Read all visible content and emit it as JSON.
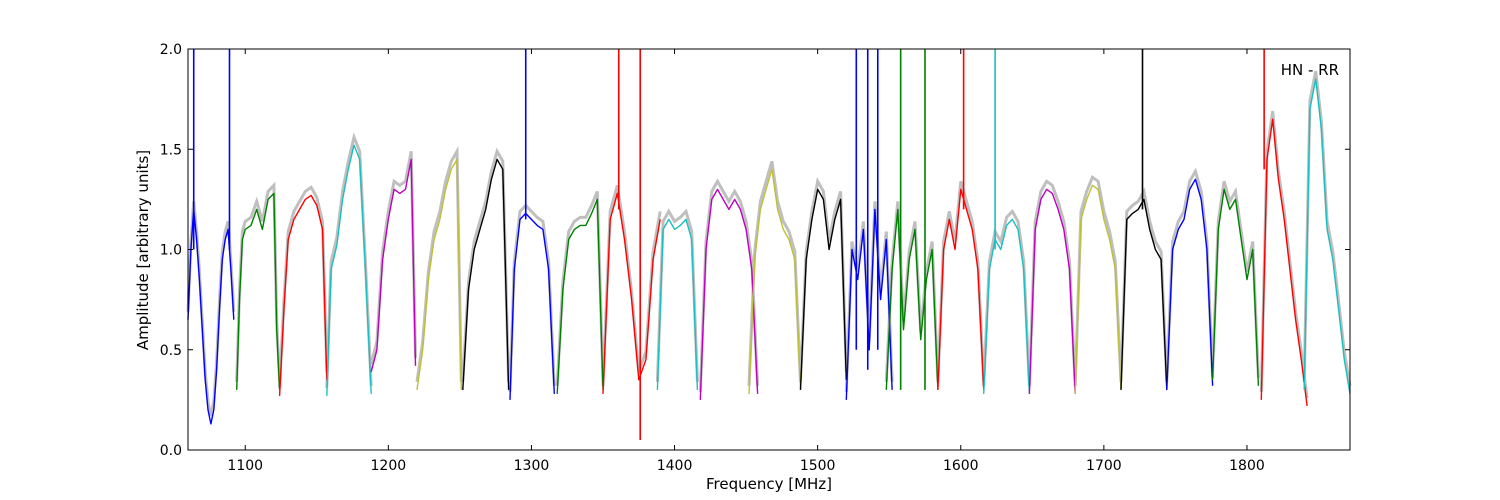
{
  "chart_data": {
    "type": "line",
    "title": "",
    "annotation": "HN - RR",
    "xlabel": "Frequency [MHz]",
    "ylabel": "Amplitude [arbitrary units]",
    "xlim": [
      1060,
      1872
    ],
    "ylim": [
      0.0,
      2.0
    ],
    "xticks": [
      1100,
      1200,
      1300,
      1400,
      1500,
      1600,
      1700,
      1800
    ],
    "yticks": [
      0.0,
      0.5,
      1.0,
      1.5,
      2.0
    ],
    "xtick_labels": [
      "1100",
      "1200",
      "1300",
      "1400",
      "1500",
      "1600",
      "1700",
      "1800"
    ],
    "ytick_labels": [
      "0.0",
      "0.5",
      "1.0",
      "1.5",
      "2.0"
    ],
    "grid": false,
    "background_color": "#bfbfbf",
    "colors": {
      "blue": "#0000ff",
      "green": "#008000",
      "red": "#ff0000",
      "cyan": "#1abfbf",
      "magenta": "#bf00bf",
      "olive": "#bfbf33",
      "black": "#000000"
    },
    "series": [
      {
        "color": "blue",
        "x": [
          1060,
          1062,
          1064,
          1066,
          1068,
          1070,
          1072,
          1074,
          1076,
          1078,
          1080,
          1082,
          1084,
          1086,
          1088,
          1090,
          1092
        ],
        "y": [
          0.65,
          1.0,
          1.2,
          1.05,
          0.85,
          0.6,
          0.35,
          0.2,
          0.13,
          0.2,
          0.4,
          0.7,
          0.95,
          1.05,
          1.1,
          0.9,
          0.65
        ]
      },
      {
        "color": "green",
        "x": [
          1094,
          1096,
          1098,
          1100,
          1104,
          1108,
          1112,
          1116,
          1120,
          1122,
          1124
        ],
        "y": [
          0.3,
          0.75,
          1.05,
          1.1,
          1.12,
          1.2,
          1.1,
          1.25,
          1.28,
          0.6,
          0.3
        ]
      },
      {
        "color": "red",
        "x": [
          1124,
          1127,
          1130,
          1134,
          1138,
          1142,
          1146,
          1150,
          1154,
          1157
        ],
        "y": [
          0.27,
          0.7,
          1.05,
          1.15,
          1.2,
          1.25,
          1.27,
          1.22,
          1.1,
          0.35
        ]
      },
      {
        "color": "cyan",
        "x": [
          1157,
          1160,
          1164,
          1168,
          1172,
          1176,
          1180,
          1184,
          1188
        ],
        "y": [
          0.27,
          0.9,
          1.02,
          1.25,
          1.4,
          1.52,
          1.45,
          0.9,
          0.28
        ]
      },
      {
        "color": "magenta",
        "x": [
          1188,
          1192,
          1196,
          1200,
          1204,
          1208,
          1212,
          1216,
          1219
        ],
        "y": [
          0.39,
          0.5,
          0.95,
          1.15,
          1.3,
          1.28,
          1.3,
          1.45,
          0.42
        ]
      },
      {
        "color": "olive",
        "x": [
          1220,
          1224,
          1228,
          1232,
          1236,
          1240,
          1244,
          1248,
          1251
        ],
        "y": [
          0.3,
          0.5,
          0.85,
          1.05,
          1.15,
          1.3,
          1.4,
          1.45,
          0.3
        ]
      },
      {
        "color": "black",
        "x": [
          1252,
          1256,
          1260,
          1264,
          1268,
          1272,
          1276,
          1280,
          1284
        ],
        "y": [
          0.3,
          0.8,
          1.0,
          1.1,
          1.2,
          1.35,
          1.45,
          1.4,
          0.3
        ]
      },
      {
        "color": "blue",
        "x": [
          1285,
          1288,
          1292,
          1296,
          1300,
          1304,
          1308,
          1312,
          1316
        ],
        "y": [
          0.25,
          0.9,
          1.15,
          1.18,
          1.15,
          1.12,
          1.1,
          0.9,
          0.28
        ]
      },
      {
        "color": "green",
        "x": [
          1318,
          1322,
          1326,
          1330,
          1334,
          1338,
          1342,
          1346,
          1350
        ],
        "y": [
          0.28,
          0.8,
          1.05,
          1.1,
          1.12,
          1.12,
          1.18,
          1.25,
          0.3
        ]
      },
      {
        "color": "red",
        "x": [
          1350,
          1355,
          1360,
          1365,
          1370,
          1375,
          1380,
          1385,
          1390
        ],
        "y": [
          0.28,
          1.15,
          1.28,
          1.05,
          0.75,
          0.35,
          0.45,
          0.95,
          1.15
        ]
      },
      {
        "color": "cyan",
        "x": [
          1388,
          1392,
          1396,
          1400,
          1404,
          1408,
          1412,
          1416
        ],
        "y": [
          0.3,
          1.1,
          1.15,
          1.1,
          1.12,
          1.15,
          1.05,
          0.3
        ]
      },
      {
        "color": "magenta",
        "x": [
          1418,
          1422,
          1426,
          1430,
          1434,
          1438,
          1442,
          1446,
          1450,
          1454,
          1458
        ],
        "y": [
          0.25,
          1.0,
          1.25,
          1.3,
          1.25,
          1.2,
          1.25,
          1.2,
          1.1,
          0.9,
          0.28
        ]
      },
      {
        "color": "olive",
        "x": [
          1452,
          1456,
          1460,
          1464,
          1468,
          1472,
          1476,
          1480,
          1484,
          1488
        ],
        "y": [
          0.28,
          0.95,
          1.2,
          1.3,
          1.4,
          1.2,
          1.1,
          1.05,
          0.95,
          0.3
        ]
      },
      {
        "color": "black",
        "x": [
          1488,
          1492,
          1496,
          1500,
          1504,
          1508,
          1512,
          1516,
          1520
        ],
        "y": [
          0.3,
          0.95,
          1.15,
          1.3,
          1.25,
          1.0,
          1.15,
          1.25,
          0.35
        ]
      },
      {
        "color": "blue",
        "x": [
          1520,
          1524,
          1528,
          1532,
          1536,
          1540,
          1544,
          1548,
          1552
        ],
        "y": [
          0.25,
          1.0,
          0.85,
          1.1,
          0.5,
          1.2,
          0.75,
          1.05,
          0.3
        ]
      },
      {
        "color": "green",
        "x": [
          1548,
          1552,
          1556,
          1560,
          1564,
          1568,
          1572,
          1576,
          1580,
          1584
        ],
        "y": [
          0.3,
          0.9,
          1.2,
          0.6,
          0.95,
          1.1,
          0.55,
          0.85,
          1.0,
          0.3
        ]
      },
      {
        "color": "red",
        "x": [
          1584,
          1588,
          1592,
          1596,
          1600,
          1604,
          1608,
          1612,
          1616
        ],
        "y": [
          0.3,
          1.0,
          1.15,
          1.0,
          1.3,
          1.2,
          1.1,
          0.9,
          0.3
        ]
      },
      {
        "color": "cyan",
        "x": [
          1616,
          1620,
          1624,
          1628,
          1632,
          1636,
          1640,
          1644,
          1648
        ],
        "y": [
          0.28,
          0.9,
          1.05,
          1.0,
          1.12,
          1.15,
          1.1,
          0.9,
          0.28
        ]
      },
      {
        "color": "magenta",
        "x": [
          1648,
          1652,
          1656,
          1660,
          1664,
          1668,
          1672,
          1676,
          1680
        ],
        "y": [
          0.28,
          1.1,
          1.25,
          1.3,
          1.28,
          1.2,
          1.1,
          0.9,
          0.28
        ]
      },
      {
        "color": "olive",
        "x": [
          1680,
          1684,
          1688,
          1692,
          1696,
          1700,
          1704,
          1708,
          1712
        ],
        "y": [
          0.28,
          1.15,
          1.25,
          1.32,
          1.3,
          1.15,
          1.05,
          0.9,
          0.3
        ]
      },
      {
        "color": "black",
        "x": [
          1712,
          1716,
          1720,
          1724,
          1728,
          1732,
          1736,
          1740,
          1744
        ],
        "y": [
          0.3,
          1.15,
          1.18,
          1.2,
          1.25,
          1.1,
          1.0,
          0.95,
          0.3
        ]
      },
      {
        "color": "blue",
        "x": [
          1744,
          1748,
          1752,
          1756,
          1760,
          1764,
          1768,
          1772,
          1776
        ],
        "y": [
          0.3,
          1.0,
          1.1,
          1.15,
          1.3,
          1.35,
          1.25,
          1.0,
          0.32
        ]
      },
      {
        "color": "green",
        "x": [
          1776,
          1780,
          1784,
          1788,
          1792,
          1796,
          1800,
          1804,
          1808
        ],
        "y": [
          0.35,
          1.1,
          1.3,
          1.2,
          1.25,
          1.05,
          0.85,
          1.0,
          0.32
        ]
      },
      {
        "color": "red",
        "x": [
          1810,
          1814,
          1818,
          1822,
          1826,
          1830,
          1834,
          1838,
          1842
        ],
        "y": [
          0.25,
          1.45,
          1.65,
          1.35,
          1.15,
          0.9,
          0.65,
          0.45,
          0.22
        ]
      },
      {
        "color": "cyan",
        "x": [
          1840,
          1844,
          1848,
          1852,
          1856,
          1860,
          1864,
          1868,
          1872
        ],
        "y": [
          0.3,
          1.7,
          1.85,
          1.6,
          1.1,
          0.95,
          0.7,
          0.45,
          0.28
        ]
      }
    ],
    "spikes": [
      {
        "color": "blue",
        "x": 1064,
        "y0": 1.0,
        "y1": 2.0
      },
      {
        "color": "blue",
        "x": 1089,
        "y0": 1.0,
        "y1": 2.0
      },
      {
        "color": "blue",
        "x": 1296,
        "y0": 1.15,
        "y1": 2.0
      },
      {
        "color": "red",
        "x": 1361,
        "y0": 1.2,
        "y1": 2.0
      },
      {
        "color": "red",
        "x": 1376,
        "y0": 0.05,
        "y1": 2.0
      },
      {
        "color": "blue",
        "x": 1527,
        "y0": 0.5,
        "y1": 2.0
      },
      {
        "color": "blue",
        "x": 1535,
        "y0": 0.4,
        "y1": 2.0
      },
      {
        "color": "blue",
        "x": 1542,
        "y0": 0.5,
        "y1": 2.0
      },
      {
        "color": "green",
        "x": 1558,
        "y0": 0.3,
        "y1": 2.0
      },
      {
        "color": "green",
        "x": 1575,
        "y0": 0.3,
        "y1": 2.0
      },
      {
        "color": "red",
        "x": 1602,
        "y0": 1.2,
        "y1": 2.0
      },
      {
        "color": "cyan",
        "x": 1624,
        "y0": 1.0,
        "y1": 2.0
      },
      {
        "color": "black",
        "x": 1727,
        "y0": 1.2,
        "y1": 2.0
      },
      {
        "color": "red",
        "x": 1812,
        "y0": 1.4,
        "y1": 2.0
      }
    ]
  }
}
